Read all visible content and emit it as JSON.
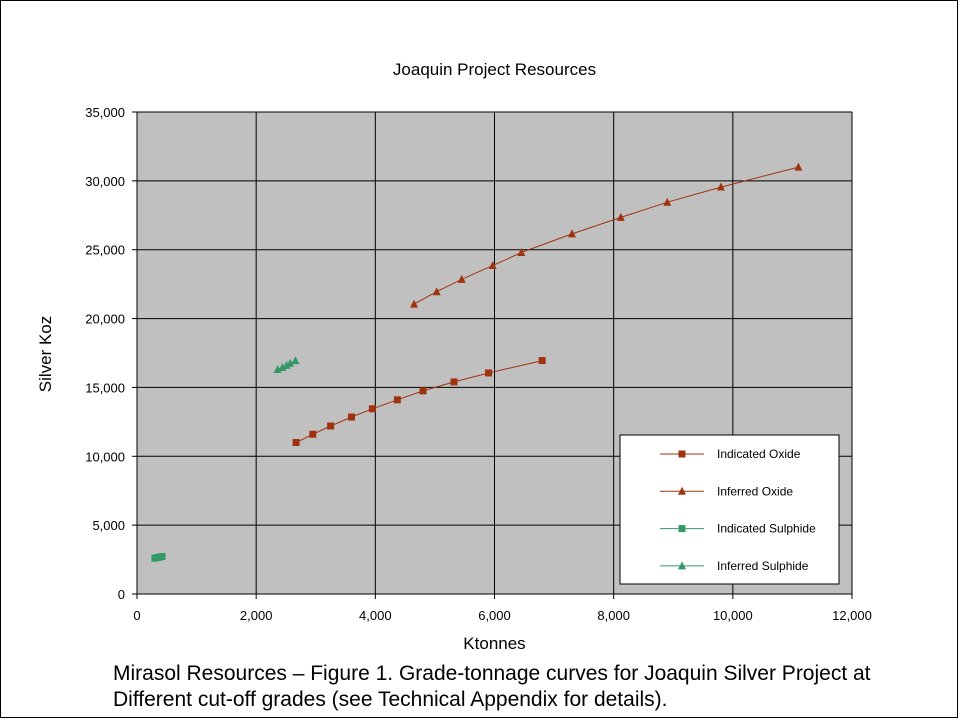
{
  "chart_data": {
    "type": "scatter",
    "title": "Joaquin Project Resources",
    "xlabel": "Ktonnes",
    "ylabel": "Silver Koz",
    "xlim": [
      0,
      12000
    ],
    "ylim": [
      0,
      35000
    ],
    "x_ticks": [
      "0",
      "2,000",
      "4,000",
      "6,000",
      "8,000",
      "10,000",
      "12,000"
    ],
    "y_ticks": [
      "0",
      "5,000",
      "10,000",
      "15,000",
      "20,000",
      "25,000",
      "30,000",
      "35,000"
    ],
    "grid": true,
    "plot_background": "#c0c0c0",
    "legend_position": "bottom-right",
    "series": [
      {
        "name": "Indicated Oxide",
        "marker": "square",
        "color": "#a0330f",
        "points": [
          [
            2670,
            11000
          ],
          [
            2950,
            11600
          ],
          [
            3250,
            12200
          ],
          [
            3600,
            12850
          ],
          [
            3950,
            13450
          ],
          [
            4370,
            14100
          ],
          [
            4800,
            14750
          ],
          [
            5320,
            15400
          ],
          [
            5900,
            16050
          ],
          [
            6800,
            16950
          ]
        ]
      },
      {
        "name": "Inferred Oxide",
        "marker": "triangle",
        "color": "#a0330f",
        "points": [
          [
            4650,
            21050
          ],
          [
            5030,
            21950
          ],
          [
            5450,
            22850
          ],
          [
            5970,
            23850
          ],
          [
            6450,
            24800
          ],
          [
            7300,
            26150
          ],
          [
            8120,
            27350
          ],
          [
            8900,
            28450
          ],
          [
            9800,
            29550
          ],
          [
            11100,
            31000
          ]
        ]
      },
      {
        "name": "Indicated Sulphide",
        "marker": "square",
        "color": "#339966",
        "points": [
          [
            300,
            2600
          ],
          [
            340,
            2650
          ],
          [
            380,
            2680
          ],
          [
            420,
            2720
          ]
        ]
      },
      {
        "name": "Inferred Sulphide",
        "marker": "triangle",
        "color": "#339966",
        "points": [
          [
            2360,
            16300
          ],
          [
            2440,
            16450
          ],
          [
            2510,
            16600
          ],
          [
            2570,
            16750
          ],
          [
            2660,
            16950
          ]
        ]
      }
    ]
  },
  "caption": {
    "line1": "Mirasol Resources – Figure 1. Grade-tonnage curves for Joaquin Silver Project at",
    "line2": "Different cut-off grades (see Technical Appendix for details)."
  }
}
